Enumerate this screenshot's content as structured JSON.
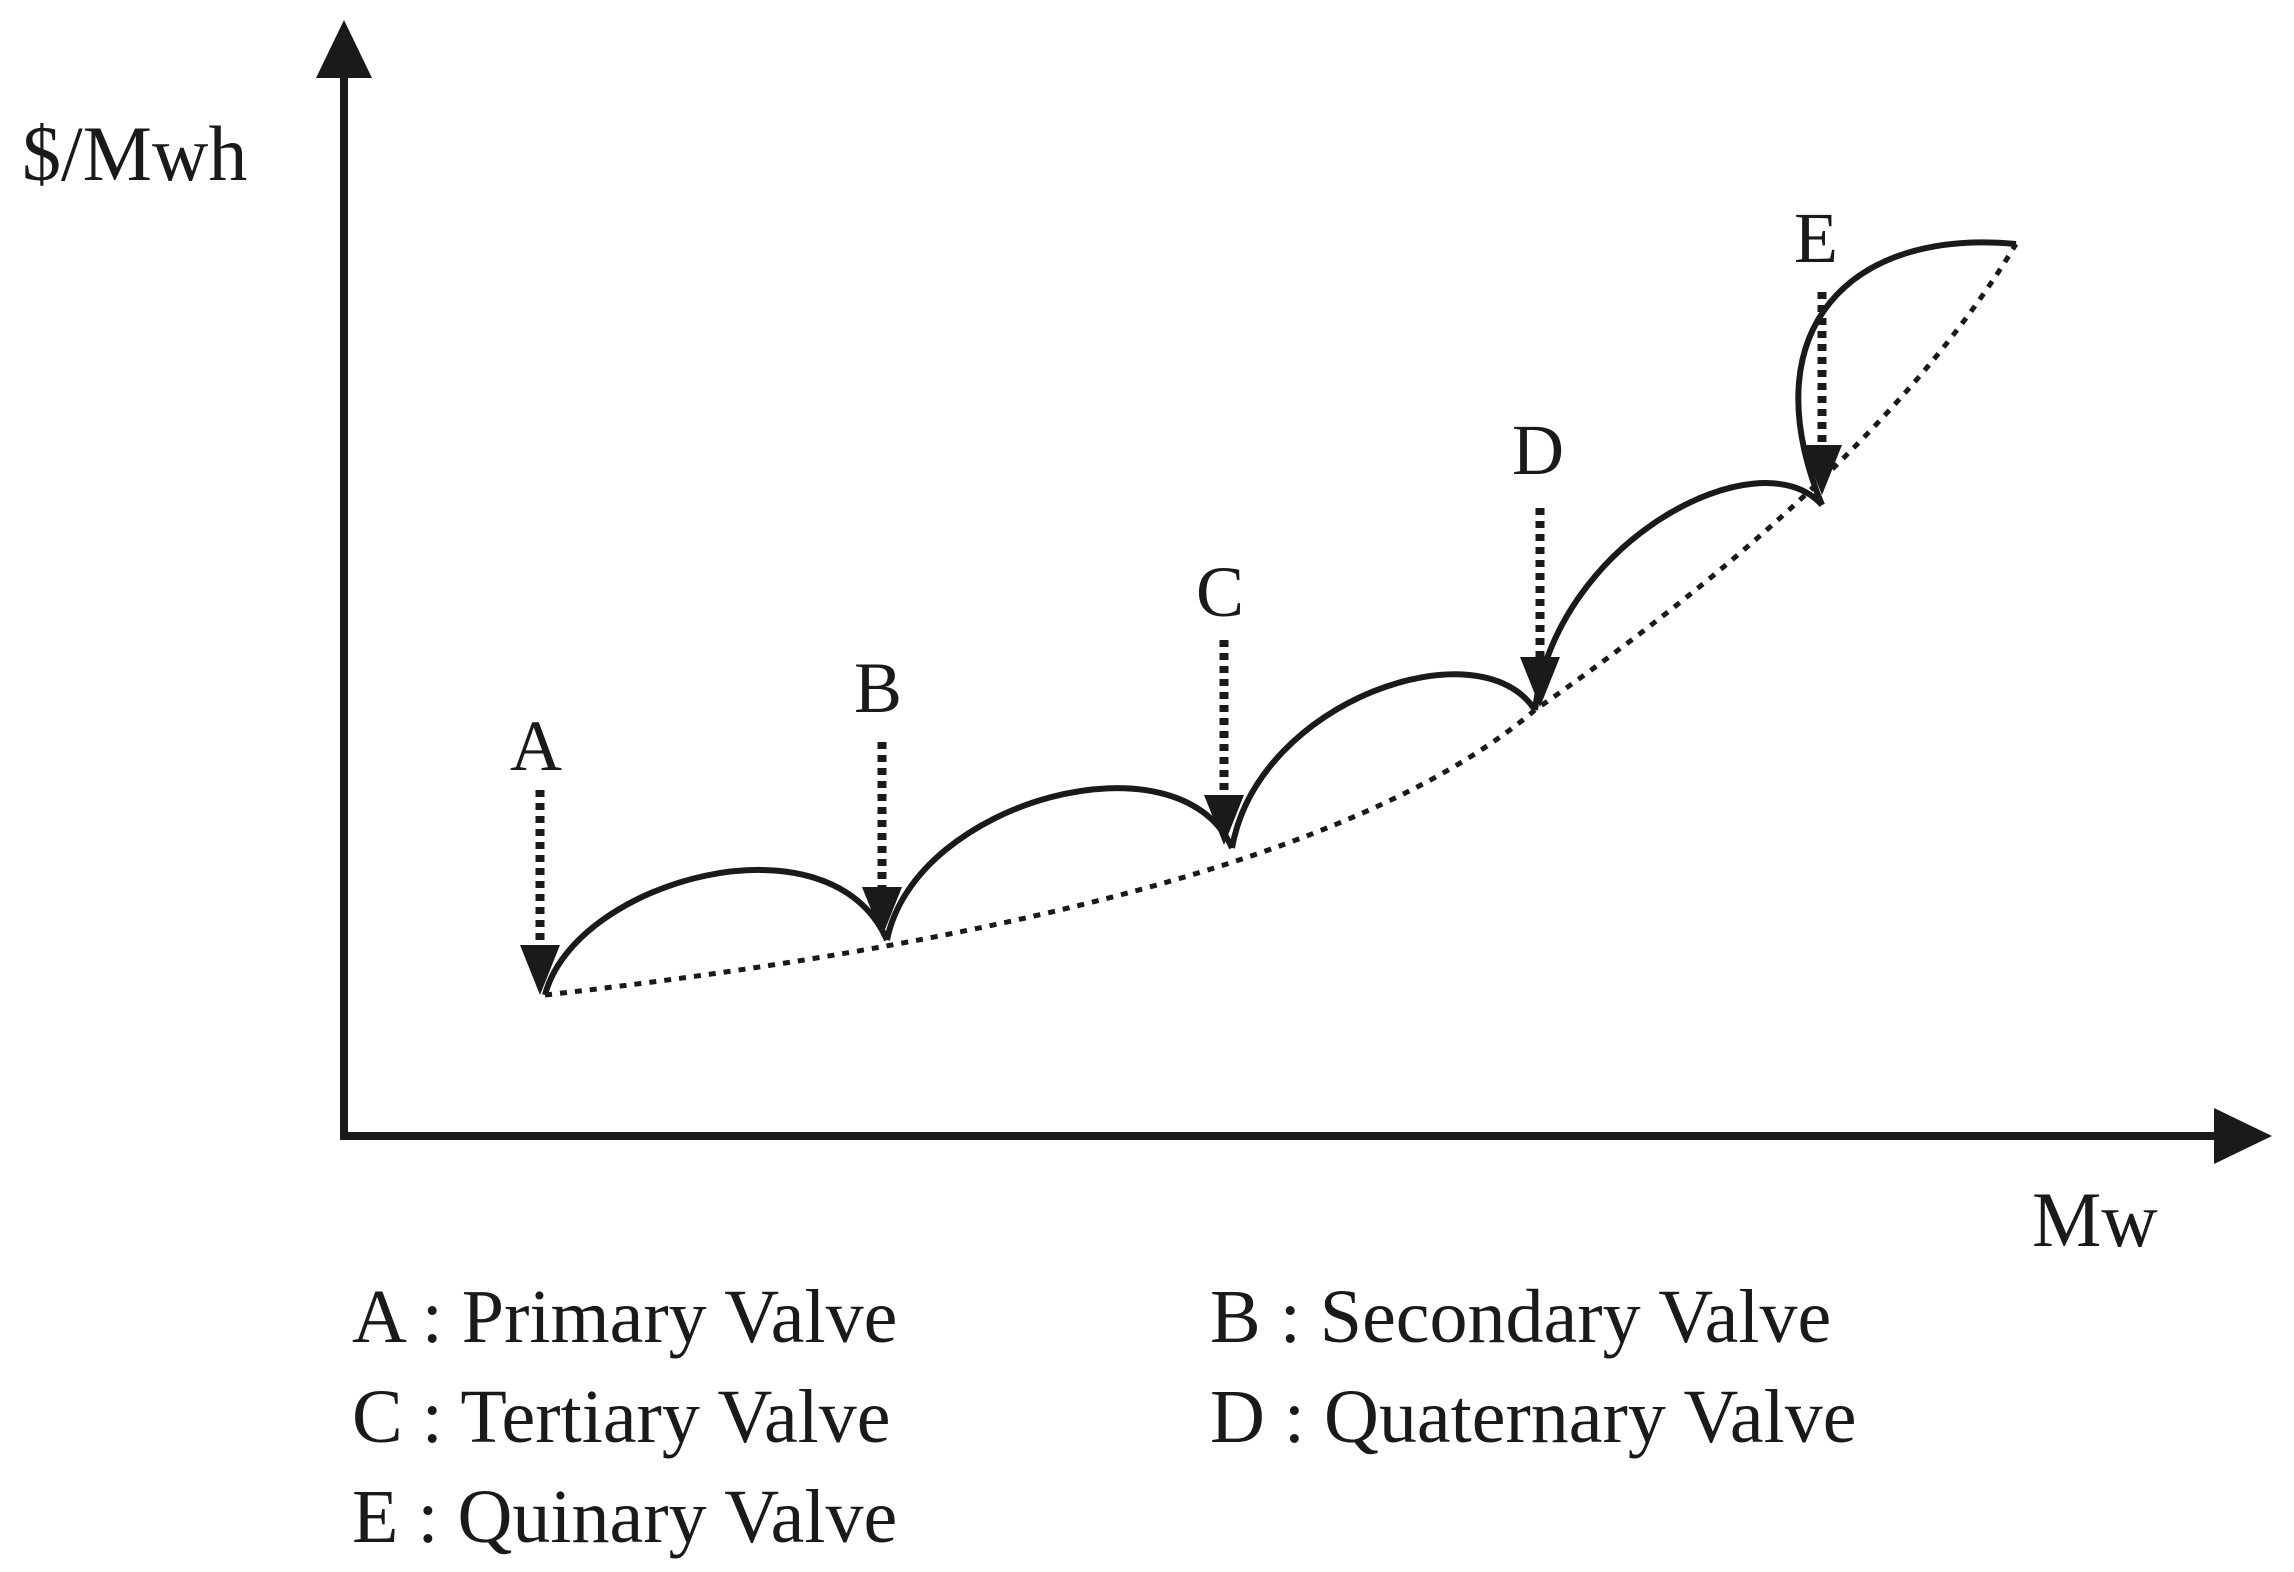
{
  "axes": {
    "y_label": "$/Mwh",
    "x_label": "Mw"
  },
  "valve_points": [
    {
      "label": "A"
    },
    {
      "label": "B"
    },
    {
      "label": "C"
    },
    {
      "label": "D"
    },
    {
      "label": "E"
    }
  ],
  "legend": [
    {
      "text": "A : Primary Valve"
    },
    {
      "text": "B : Secondary Valve"
    },
    {
      "text": "C : Tertiary Valve"
    },
    {
      "text": "D : Quaternary Valve"
    },
    {
      "text": "E : Quinary Valve"
    }
  ],
  "colors": {
    "ink": "#1a1a1a",
    "background": "#ffffff"
  }
}
